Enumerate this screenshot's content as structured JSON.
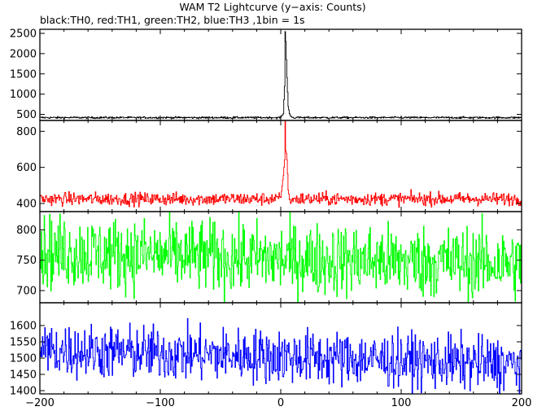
{
  "chart_data": {
    "type": "line",
    "title": "WAM T2 Lightcurve (y−axis: Counts)",
    "subtitle": "black:TH0, red:TH1, green:TH2, blue:TH3 ,1bin = 1s",
    "xlabel": "",
    "ylabel": "",
    "xlim": [
      -200,
      200
    ],
    "xticks": [
      -200,
      -100,
      0,
      100,
      200
    ],
    "grid": false,
    "legend": "none",
    "bin_seconds": 1,
    "panels": [
      {
        "series": "TH0",
        "color": "#000000",
        "ylim": [
          350,
          2600
        ],
        "yticks": [
          500,
          1000,
          1500,
          2000,
          2500
        ],
        "baseline": 420,
        "noise": 12,
        "burst": [
          [
            0,
            430
          ],
          [
            2,
            520
          ],
          [
            3,
            1200
          ],
          [
            3.5,
            2550
          ],
          [
            4,
            2300
          ],
          [
            5,
            1400
          ],
          [
            6,
            700
          ],
          [
            7,
            520
          ],
          [
            8,
            460
          ],
          [
            9,
            440
          ],
          [
            10,
            425
          ]
        ]
      },
      {
        "series": "TH1",
        "color": "#ff0000",
        "ylim": [
          355,
          860
        ],
        "yticks": [
          400,
          600,
          800
        ],
        "baseline": 425,
        "noise": 18,
        "burst": [
          [
            0,
            430
          ],
          [
            2,
            560
          ],
          [
            3,
            640
          ],
          [
            3.5,
            850
          ],
          [
            4,
            700
          ],
          [
            5,
            650
          ],
          [
            6,
            480
          ],
          [
            7,
            420
          ],
          [
            8,
            410
          ],
          [
            10,
            420
          ]
        ]
      },
      {
        "series": "TH2",
        "color": "#00ff00",
        "ylim": [
          680,
          830
        ],
        "yticks": [
          700,
          750,
          800
        ],
        "baseline": 755,
        "noise": 30,
        "trend": [
          [
            -200,
            765
          ],
          [
            0,
            752
          ],
          [
            200,
            745
          ]
        ]
      },
      {
        "series": "TH3",
        "color": "#0000ff",
        "ylim": [
          1390,
          1670
        ],
        "yticks": [
          1400,
          1450,
          1500,
          1550,
          1600
        ],
        "baseline": 1510,
        "noise": 42,
        "trend": [
          [
            -200,
            1525
          ],
          [
            0,
            1505
          ],
          [
            200,
            1480
          ]
        ]
      }
    ]
  }
}
